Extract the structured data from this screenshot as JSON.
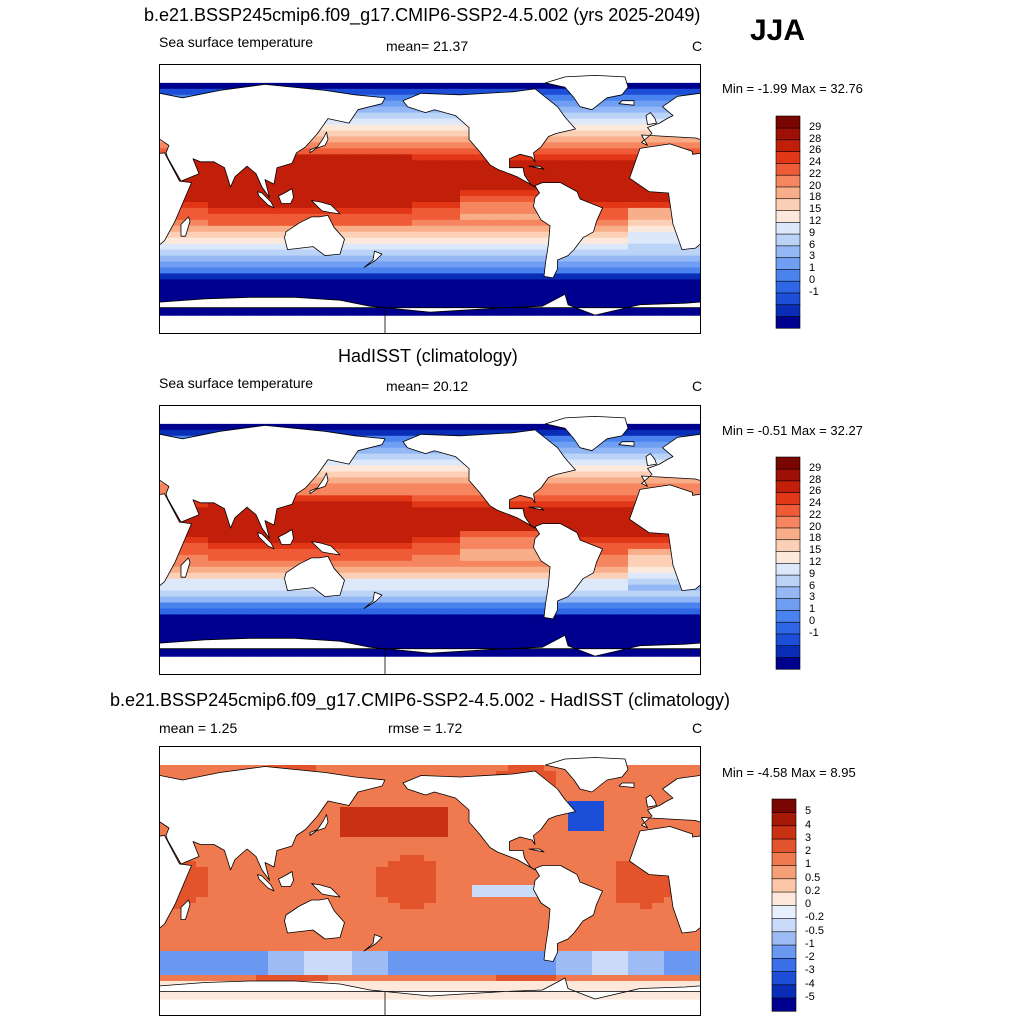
{
  "season": "JJA",
  "colors": {
    "ocean_scale": [
      "#00008f",
      "#0a2db8",
      "#1c4ed8",
      "#2e66e6",
      "#4a82ee",
      "#6f9ef2",
      "#94b8f5",
      "#bcd3f8",
      "#dde8fb",
      "#fde9dc",
      "#fcd0b6",
      "#f9ae8a",
      "#f5865f",
      "#ef5b36",
      "#e13716",
      "#c21f0a",
      "#9e1005",
      "#7a0602"
    ],
    "diff_scale": [
      "#00008f",
      "#0a2db8",
      "#1c4ed8",
      "#3a6fe9",
      "#6a98f1",
      "#9dbcf6",
      "#cadcfa",
      "#e9f0fd",
      "#fde9dc",
      "#fbc7a8",
      "#f6a078",
      "#f07a4f",
      "#e3532c",
      "#c93113",
      "#a51a06",
      "#7a0602"
    ],
    "land": "#ffffff",
    "coast": "#000000"
  },
  "panels": [
    {
      "title": "b.e21.BSSP245cmip6.f09_g17.CMIP6-SSP2-4.5.002 (yrs 2025-2049)",
      "left_label": "Sea surface temperature",
      "center_label": "mean=  21.37",
      "units": "C",
      "minmax": "Min =  -1.99 Max =  32.76",
      "kind": "ocean",
      "variant": "model",
      "colorbar_labels": [
        "29",
        "28",
        "26",
        "24",
        "22",
        "20",
        "18",
        "15",
        "12",
        "9",
        "6",
        "3",
        "1",
        "0",
        "-1"
      ]
    },
    {
      "title": "HadISST (climatology)",
      "left_label": "Sea surface temperature",
      "center_label": "mean=  20.12",
      "units": "C",
      "minmax": "Min =  -0.51 Max =  32.27",
      "kind": "ocean",
      "variant": "obs",
      "colorbar_labels": [
        "29",
        "28",
        "26",
        "24",
        "22",
        "20",
        "18",
        "15",
        "12",
        "9",
        "6",
        "3",
        "1",
        "0",
        "-1"
      ]
    },
    {
      "title": "b.e21.BSSP245cmip6.f09_g17.CMIP6-SSP2-4.5.002 - HadISST (climatology)",
      "left_label": "mean =   1.25",
      "center_label": "rmse =   1.72",
      "units": "C",
      "minmax": "Min =  -4.58 Max =   8.95",
      "kind": "diff",
      "variant": "diff",
      "colorbar_labels": [
        "5",
        "4",
        "3",
        "2",
        "1",
        "0.5",
        "0.2",
        "0",
        "-0.2",
        "-0.5",
        "-1",
        "-2",
        "-3",
        "-4",
        "-5"
      ]
    }
  ],
  "chart_data": [
    {
      "type": "heatmap",
      "title": "b.e21.BSSP245cmip6.f09_g17.CMIP6-SSP2-4.5.002 (yrs 2025-2049)",
      "variable": "Sea surface temperature",
      "mean": 21.37,
      "units": "C",
      "min": -1.99,
      "max": 32.76,
      "contour_levels": [
        -1,
        0,
        1,
        3,
        6,
        9,
        12,
        15,
        18,
        20,
        22,
        24,
        26,
        28,
        29
      ]
    },
    {
      "type": "heatmap",
      "title": "HadISST (climatology)",
      "variable": "Sea surface temperature",
      "mean": 20.12,
      "units": "C",
      "min": -0.51,
      "max": 32.27,
      "contour_levels": [
        -1,
        0,
        1,
        3,
        6,
        9,
        12,
        15,
        18,
        20,
        22,
        24,
        26,
        28,
        29
      ]
    },
    {
      "type": "heatmap",
      "title": "b.e21.BSSP245cmip6.f09_g17.CMIP6-SSP2-4.5.002 - HadISST (climatology)",
      "mean": 1.25,
      "rmse": 1.72,
      "units": "C",
      "min": -4.58,
      "max": 8.95,
      "contour_levels": [
        -5,
        -4,
        -3,
        -2,
        -1,
        -0.5,
        -0.2,
        0,
        0.2,
        0.5,
        1,
        2,
        3,
        4,
        5
      ]
    }
  ]
}
